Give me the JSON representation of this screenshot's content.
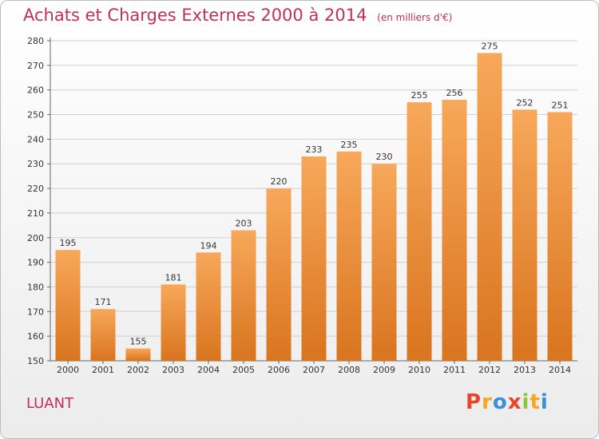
{
  "header": {
    "title": "Achats et Charges Externes 2000 à 2014",
    "subtitle": "(en milliers d'€)"
  },
  "footer": {
    "commune": "LUANT",
    "logo_letters": [
      "P",
      "r",
      "o",
      "x",
      "i",
      "t",
      "i"
    ],
    "logo_colors": [
      "#e8452c",
      "#f5a623",
      "#3a8fd8",
      "#e8452c",
      "#8cc63f",
      "#f5a623",
      "#3a8fd8"
    ]
  },
  "colors": {
    "bar_top": "#f7a85a",
    "bar_bottom": "#d9741f",
    "grid": "#d0d0d0"
  },
  "chart_data": {
    "type": "bar",
    "title": "Achats et Charges Externes 2000 à 2014",
    "subtitle": "(en milliers d'€)",
    "categories": [
      "2000",
      "2001",
      "2002",
      "2003",
      "2004",
      "2005",
      "2006",
      "2007",
      "2008",
      "2009",
      "2010",
      "2011",
      "2012",
      "2013",
      "2014"
    ],
    "values": [
      195,
      171,
      155,
      181,
      194,
      203,
      220,
      233,
      235,
      230,
      255,
      256,
      275,
      252,
      251
    ],
    "ylim": [
      150,
      280
    ],
    "yticks": [
      150,
      160,
      170,
      180,
      190,
      200,
      210,
      220,
      230,
      240,
      250,
      260,
      270,
      280
    ],
    "grid": true
  }
}
